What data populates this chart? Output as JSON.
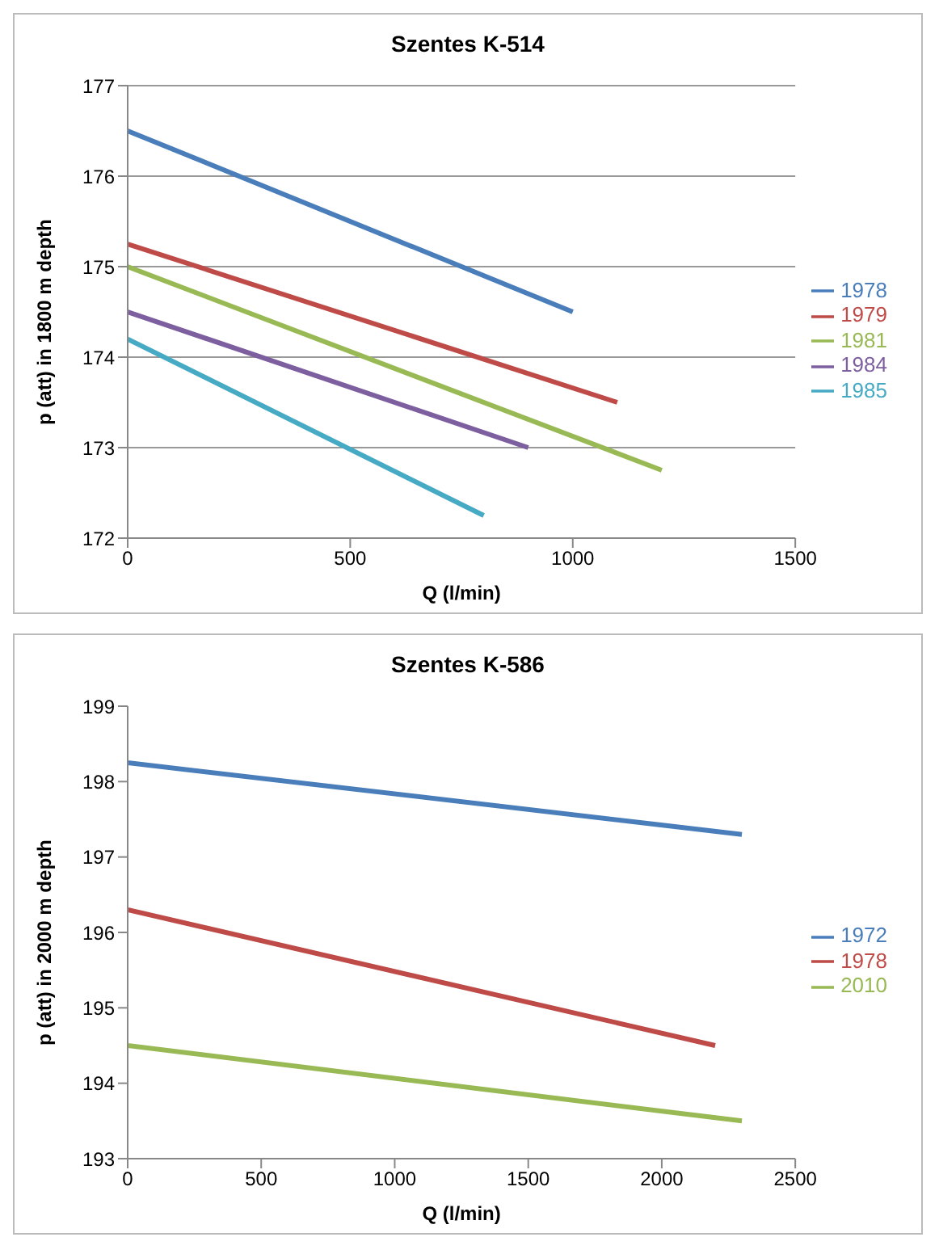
{
  "chart_data": [
    {
      "type": "line",
      "title": "Szentes K-514",
      "xlabel": "Q (l/min)",
      "ylabel": "p (att) in 1800 m depth",
      "xlim": [
        0,
        1500
      ],
      "xticks": [
        0,
        500,
        1000,
        1500
      ],
      "ylim": [
        172,
        177
      ],
      "yticks": [
        172,
        173,
        174,
        175,
        176,
        177
      ],
      "grid": "y",
      "legend": "right",
      "marker": "none",
      "line_style": "solid",
      "series": [
        {
          "name": "1978",
          "color": "#4a7ebb",
          "x": [
            0,
            1000
          ],
          "values": [
            176.5,
            174.5
          ]
        },
        {
          "name": "1979",
          "color": "#be4b48",
          "x": [
            0,
            1100
          ],
          "values": [
            175.25,
            173.5
          ]
        },
        {
          "name": "1981",
          "color": "#98b954",
          "x": [
            0,
            1200
          ],
          "values": [
            175,
            172.75
          ]
        },
        {
          "name": "1984",
          "color": "#7d5fa0",
          "x": [
            0,
            900
          ],
          "values": [
            174.5,
            173
          ]
        },
        {
          "name": "1985",
          "color": "#46aac5",
          "x": [
            0,
            800
          ],
          "values": [
            174.2,
            172.25
          ]
        }
      ]
    },
    {
      "type": "line",
      "title": "Szentes K-586",
      "xlabel": "Q (l/min)",
      "ylabel": "p (att) in 2000 m depth",
      "xlim": [
        0,
        2500
      ],
      "xticks": [
        0,
        500,
        1000,
        1500,
        2000,
        2500
      ],
      "ylim": [
        193,
        199
      ],
      "yticks": [
        193,
        194,
        195,
        196,
        197,
        198,
        199
      ],
      "grid": false,
      "legend": "right",
      "marker": "none",
      "line_style": "solid",
      "series": [
        {
          "name": "1972",
          "color": "#4a7ebb",
          "x": [
            0,
            2300
          ],
          "values": [
            198.25,
            197.3
          ]
        },
        {
          "name": "1978",
          "color": "#be4b48",
          "x": [
            0,
            2200
          ],
          "values": [
            196.3,
            194.5
          ]
        },
        {
          "name": "2010",
          "color": "#98b954",
          "x": [
            0,
            2300
          ],
          "values": [
            194.5,
            193.5
          ]
        }
      ]
    }
  ]
}
